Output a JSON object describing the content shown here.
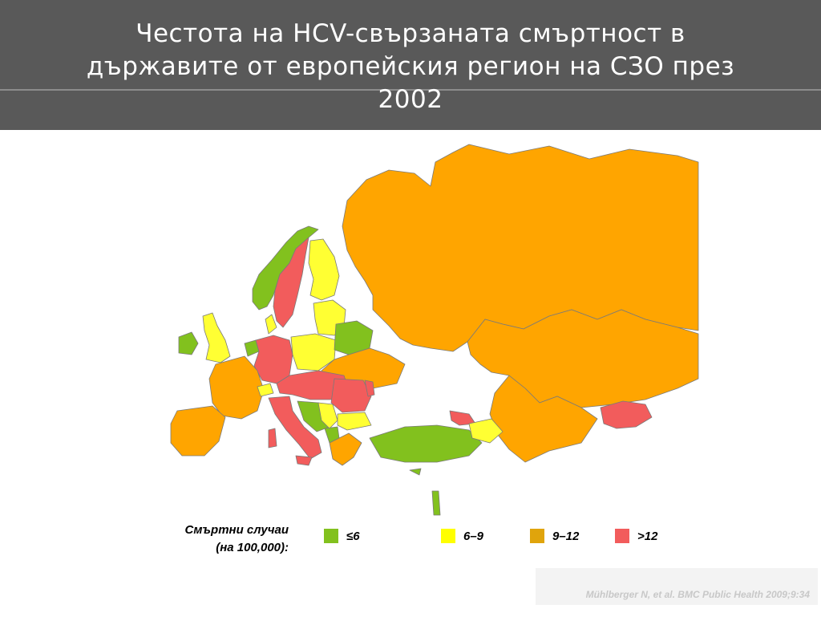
{
  "slide": {
    "title_line1": "Честота на HCV-свързаната смъртност в",
    "title_line2": "държавите от европейския регион на СЗО през",
    "title_line3": "2002"
  },
  "legend": {
    "caption_line1": "Смъртни случаи",
    "caption_line2": "(на 100,000):",
    "items": [
      {
        "label": "≤6",
        "color": "#82c11e"
      },
      {
        "label": "6–9",
        "color": "#ffff00"
      },
      {
        "label": "9–12",
        "color": "#e0a40c"
      },
      {
        "label": ">12",
        "color": "#f25c5c"
      }
    ]
  },
  "map_colors": {
    "green": "#82c11e",
    "yellow": "#ffff33",
    "orange": "#ffa500",
    "red": "#f25c5c",
    "no_data": "#ffffff",
    "border": "#7a7a7a"
  },
  "citation": "Mühlberger N, et al. BMC Public Health 2009;9:34"
}
